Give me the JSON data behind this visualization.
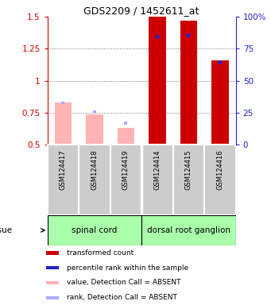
{
  "title": "GDS2209 / 1452611_at",
  "samples": [
    "GSM124417",
    "GSM124418",
    "GSM124419",
    "GSM124414",
    "GSM124415",
    "GSM124416"
  ],
  "red_values": [
    null,
    null,
    null,
    1.5,
    1.47,
    1.16
  ],
  "pink_values": [
    0.83,
    0.74,
    0.63,
    null,
    null,
    null
  ],
  "blue_top": [
    null,
    null,
    null,
    1.36,
    1.37,
    1.16
  ],
  "blue_bottom": [
    null,
    null,
    null,
    1.33,
    1.34,
    1.13
  ],
  "lblue_top": [
    0.84,
    0.77,
    0.68,
    null,
    null,
    null
  ],
  "lblue_bottom": [
    0.82,
    0.75,
    0.66,
    null,
    null,
    null
  ],
  "ylim_left": [
    0.5,
    1.5
  ],
  "ylim_right": [
    0,
    100
  ],
  "yticks_left": [
    0.5,
    0.75,
    1.0,
    1.25,
    1.5
  ],
  "ytick_labels_left": [
    "0.5",
    "0.75",
    "1",
    "1.25",
    "1.5"
  ],
  "yticks_right": [
    0,
    25,
    50,
    75,
    100
  ],
  "ytick_labels_right": [
    "0",
    "25",
    "50",
    "75",
    "100%"
  ],
  "tissue_labels": [
    "spinal cord",
    "dorsal root ganglion"
  ],
  "tissue_color": "#aaffaa",
  "red_color": "#cc0000",
  "pink_color": "#ffb3b3",
  "blue_color": "#2222cc",
  "lblue_color": "#aaaaff",
  "grid_color": "#555555",
  "sample_bg_color": "#cccccc",
  "legend_items": [
    [
      "transformed count",
      "#cc0000"
    ],
    [
      "percentile rank within the sample",
      "#2222cc"
    ],
    [
      "value, Detection Call = ABSENT",
      "#ffb3b3"
    ],
    [
      "rank, Detection Call = ABSENT",
      "#aaaaff"
    ]
  ]
}
